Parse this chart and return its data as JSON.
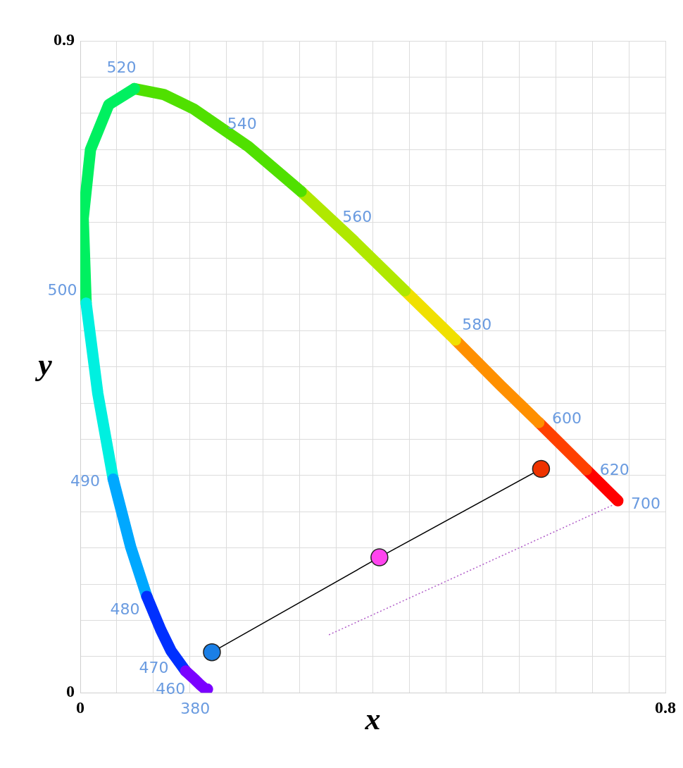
{
  "chart_data": {
    "type": "scatter",
    "xlabel": "x",
    "ylabel": "y",
    "xlim": [
      0,
      0.8
    ],
    "ylim": [
      0,
      0.9
    ],
    "xticks": [
      0,
      {
        "value": 0.05,
        "label": null
      },
      {
        "value": 0.1,
        "label": null
      },
      {
        "value": 0.15,
        "label": null
      },
      {
        "value": 0.2,
        "label": null
      },
      {
        "value": 0.25,
        "label": null
      },
      {
        "value": 0.3,
        "label": null
      },
      {
        "value": 0.35,
        "label": null
      },
      {
        "value": 0.4,
        "label": null
      },
      {
        "value": 0.45,
        "label": null
      },
      {
        "value": 0.5,
        "label": null
      },
      {
        "value": 0.55,
        "label": null
      },
      {
        "value": 0.6,
        "label": null
      },
      {
        "value": 0.65,
        "label": null
      },
      {
        "value": 0.7,
        "label": null
      },
      {
        "value": 0.75,
        "label": null
      },
      0.8
    ],
    "yticks": [
      0,
      {
        "value": 0.05,
        "label": null
      },
      {
        "value": 0.1,
        "label": null
      },
      {
        "value": 0.15,
        "label": null
      },
      {
        "value": 0.2,
        "label": null
      },
      {
        "value": 0.25,
        "label": null
      },
      {
        "value": 0.3,
        "label": null
      },
      {
        "value": 0.35,
        "label": null
      },
      {
        "value": 0.4,
        "label": null
      },
      {
        "value": 0.45,
        "label": null
      },
      {
        "value": 0.5,
        "label": null
      },
      {
        "value": 0.55,
        "label": null
      },
      {
        "value": 0.6,
        "label": null
      },
      {
        "value": 0.65,
        "label": null
      },
      {
        "value": 0.7,
        "label": null
      },
      {
        "value": 0.75,
        "label": null
      },
      {
        "value": 0.8,
        "label": null
      },
      {
        "value": 0.85,
        "label": null
      },
      0.9
    ],
    "grid": true,
    "series": [
      {
        "type": "line",
        "marker": "none",
        "color": "#7a00ff",
        "x": [
          0.174,
          0.173,
          0.171,
          0.164,
          0.157,
          0.144
        ],
        "values": [
          0.005,
          0.005,
          0.005,
          0.011,
          0.018,
          0.03
        ]
      },
      {
        "type": "line",
        "marker": "none",
        "color": "#0030ff",
        "x": [
          0.144,
          0.124,
          0.11,
          0.091
        ],
        "values": [
          0.03,
          0.058,
          0.087,
          0.133
        ]
      },
      {
        "type": "line",
        "marker": "none",
        "color": "#00a8ff",
        "x": [
          0.091,
          0.069,
          0.045
        ],
        "values": [
          0.133,
          0.201,
          0.295
        ]
      },
      {
        "type": "line",
        "marker": "none",
        "color": "#00f0e0",
        "x": [
          0.045,
          0.024,
          0.008
        ],
        "values": [
          0.295,
          0.413,
          0.538
        ]
      },
      {
        "type": "line",
        "marker": "none",
        "color": "#00f060",
        "x": [
          0.008,
          0.004,
          0.014,
          0.039,
          0.074
        ],
        "values": [
          0.538,
          0.655,
          0.75,
          0.812,
          0.834
        ]
      },
      {
        "type": "line",
        "marker": "none",
        "color": "#50e000",
        "x": [
          0.074,
          0.114,
          0.155,
          0.23,
          0.302
        ],
        "values": [
          0.834,
          0.826,
          0.806,
          0.754,
          0.692
        ]
      },
      {
        "type": "line",
        "marker": "none",
        "color": "#b0e800",
        "x": [
          0.302,
          0.373,
          0.444
        ],
        "values": [
          0.692,
          0.625,
          0.555
        ]
      },
      {
        "type": "line",
        "marker": "none",
        "color": "#f0e000",
        "x": [
          0.444,
          0.513
        ],
        "values": [
          0.555,
          0.487
        ]
      },
      {
        "type": "line",
        "marker": "none",
        "color": "#ff9000",
        "x": [
          0.513,
          0.575,
          0.627
        ],
        "values": [
          0.487,
          0.424,
          0.373
        ]
      },
      {
        "type": "line",
        "marker": "none",
        "color": "#ff4000",
        "x": [
          0.627,
          0.666,
          0.692
        ],
        "values": [
          0.373,
          0.334,
          0.308
        ]
      },
      {
        "type": "line",
        "marker": "none",
        "color": "#ff0000",
        "x": [
          0.692,
          0.719,
          0.73,
          0.735
        ],
        "values": [
          0.308,
          0.281,
          0.27,
          0.265
        ]
      },
      {
        "type": "line",
        "marker": "none",
        "line_style": "dotted",
        "color": "#b05cc8",
        "x": [
          0.34,
          0.73
        ],
        "values": [
          0.08,
          0.26
        ]
      },
      {
        "type": "line",
        "marker": "circle",
        "color": "#000000",
        "x": [
          0.18,
          0.409,
          0.63
        ],
        "values": [
          0.056,
          0.187,
          0.309
        ],
        "colors": [
          "#1a7fe6",
          "#ff44ee",
          "#ee3300"
        ]
      }
    ],
    "annotations": [
      {
        "text": "380",
        "x": 0.174,
        "y": 0.005
      },
      {
        "text": "460",
        "x": 0.144,
        "y": 0.03
      },
      {
        "text": "470",
        "x": 0.124,
        "y": 0.058
      },
      {
        "text": "480",
        "x": 0.091,
        "y": 0.133
      },
      {
        "text": "490",
        "x": 0.045,
        "y": 0.295
      },
      {
        "text": "500",
        "x": 0.008,
        "y": 0.538
      },
      {
        "text": "520",
        "x": 0.074,
        "y": 0.834
      },
      {
        "text": "540",
        "x": 0.23,
        "y": 0.754
      },
      {
        "text": "560",
        "x": 0.373,
        "y": 0.625
      },
      {
        "text": "580",
        "x": 0.513,
        "y": 0.487
      },
      {
        "text": "600",
        "x": 0.627,
        "y": 0.373
      },
      {
        "text": "620",
        "x": 0.692,
        "y": 0.308
      },
      {
        "text": "700",
        "x": 0.735,
        "y": 0.265
      }
    ]
  }
}
